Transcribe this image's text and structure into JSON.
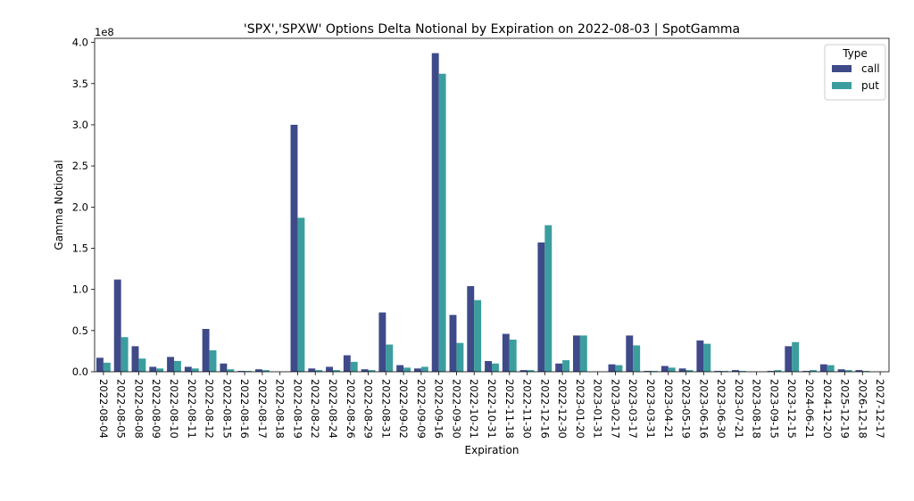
{
  "chart_data": {
    "type": "bar",
    "title": "'SPX','SPXW' Options Delta Notional by Expiration on 2022-08-03 | SpotGamma",
    "xlabel": "Expiration",
    "ylabel": "Gamma Notional",
    "y_offset_label": "1e8",
    "ylim": [
      0,
      4.05
    ],
    "yticks": [
      "0.0",
      "0.5",
      "1.0",
      "1.5",
      "2.0",
      "2.5",
      "3.0",
      "3.5",
      "4.0"
    ],
    "legend": {
      "title": "Type",
      "position": "top-right"
    },
    "grid": false,
    "categories": [
      "2022-08-04",
      "2022-08-05",
      "2022-08-08",
      "2022-08-09",
      "2022-08-10",
      "2022-08-11",
      "2022-08-12",
      "2022-08-15",
      "2022-08-16",
      "2022-08-17",
      "2022-08-18",
      "2022-08-19",
      "2022-08-22",
      "2022-08-24",
      "2022-08-26",
      "2022-08-29",
      "2022-08-31",
      "2022-09-02",
      "2022-09-09",
      "2022-09-16",
      "2022-09-30",
      "2022-10-21",
      "2022-10-31",
      "2022-11-18",
      "2022-11-30",
      "2022-12-16",
      "2022-12-30",
      "2023-01-20",
      "2023-01-31",
      "2023-02-17",
      "2023-03-17",
      "2023-03-31",
      "2023-04-21",
      "2023-05-19",
      "2023-06-16",
      "2023-06-30",
      "2023-07-21",
      "2023-08-18",
      "2023-09-15",
      "2023-12-15",
      "2024-06-21",
      "2024-12-20",
      "2025-12-19",
      "2026-12-18",
      "2027-12-17"
    ],
    "series": [
      {
        "name": "call",
        "color": "#3f4a89",
        "values": [
          0.17,
          1.12,
          0.31,
          0.06,
          0.18,
          0.06,
          0.52,
          0.1,
          0.01,
          0.03,
          0.0,
          3.0,
          0.04,
          0.06,
          0.2,
          0.03,
          0.72,
          0.08,
          0.04,
          3.87,
          0.69,
          1.04,
          0.13,
          0.46,
          0.02,
          1.57,
          0.1,
          0.44,
          0.0,
          0.09,
          0.44,
          0.01,
          0.07,
          0.04,
          0.38,
          0.01,
          0.02,
          0.0,
          0.01,
          0.31,
          0.01,
          0.09,
          0.03,
          0.02,
          0.0
        ]
      },
      {
        "name": "put",
        "color": "#3c9d9f",
        "values": [
          0.11,
          0.42,
          0.16,
          0.04,
          0.13,
          0.04,
          0.26,
          0.03,
          0.01,
          0.02,
          0.0,
          1.87,
          0.02,
          0.02,
          0.12,
          0.02,
          0.33,
          0.05,
          0.06,
          3.62,
          0.35,
          0.87,
          0.1,
          0.39,
          0.02,
          1.78,
          0.14,
          0.44,
          0.0,
          0.08,
          0.32,
          0.01,
          0.05,
          0.02,
          0.34,
          0.01,
          0.01,
          0.0,
          0.02,
          0.36,
          0.02,
          0.08,
          0.02,
          0.01,
          0.0
        ]
      }
    ]
  }
}
